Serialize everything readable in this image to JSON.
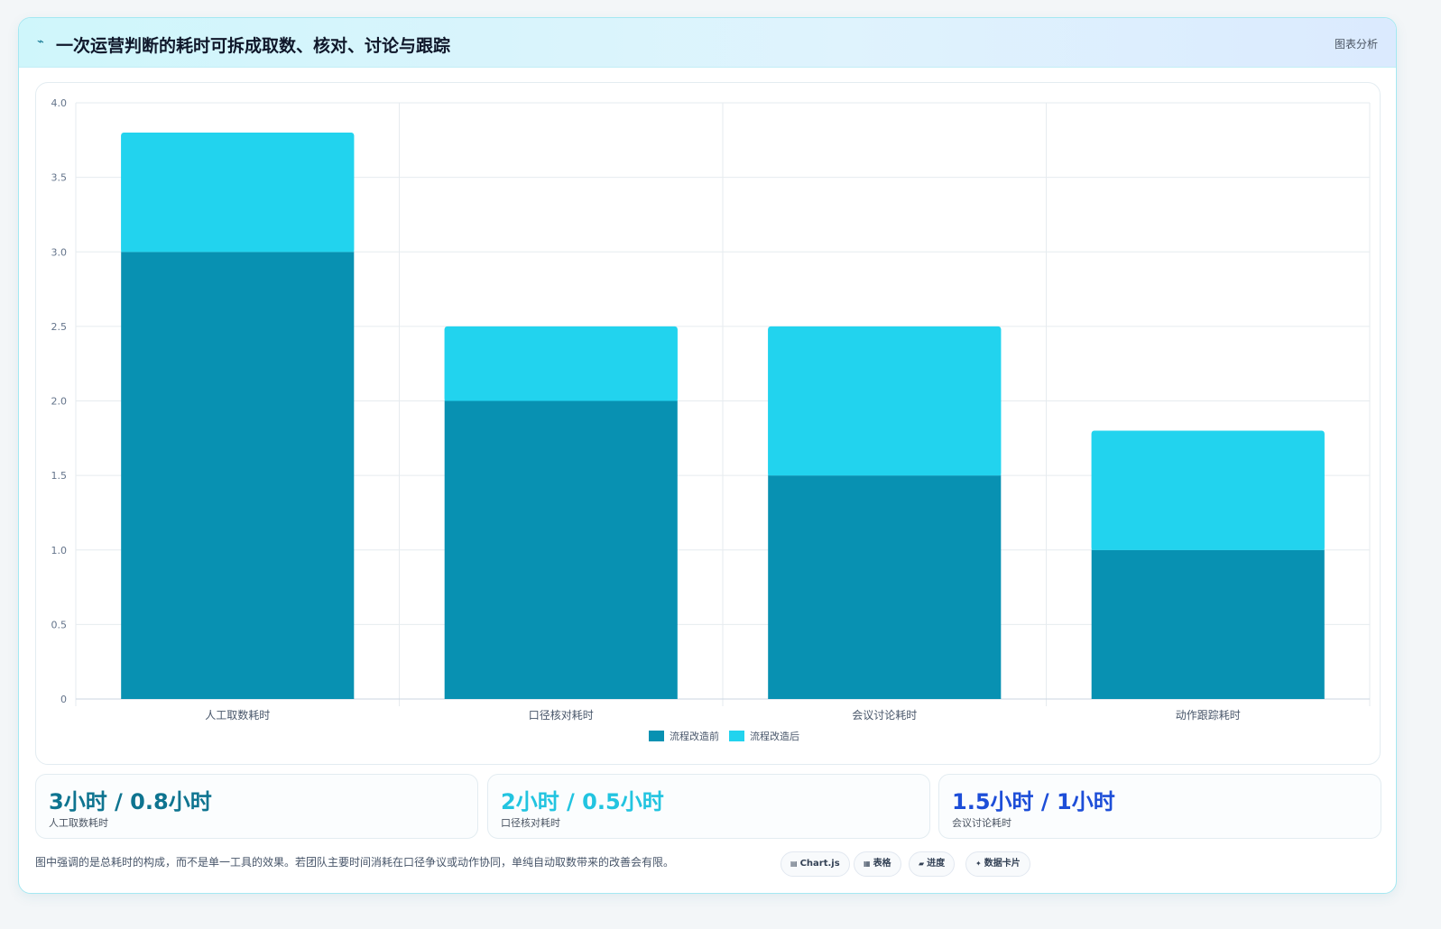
{
  "header": {
    "icon": "bolt-icon",
    "title": "一次运营判断的耗时可拆成取数、核对、讨论与跟踪",
    "tag": "图表分析"
  },
  "chart_data": {
    "type": "bar",
    "stacked": true,
    "categories": [
      "人工取数耗时",
      "口径核对耗时",
      "会议讨论耗时",
      "动作跟踪耗时"
    ],
    "series": [
      {
        "name": "流程改造前",
        "values": [
          3.0,
          2.0,
          1.5,
          1.0
        ],
        "color": "#0891b2"
      },
      {
        "name": "流程改造后",
        "values": [
          0.8,
          0.5,
          1.0,
          0.8
        ],
        "color": "#22d3ee"
      }
    ],
    "ylim": [
      0,
      4.0
    ],
    "yticks": [
      "0",
      "0.5",
      "1.0",
      "1.5",
      "2.0",
      "2.5",
      "3.0",
      "3.5",
      "4.0"
    ],
    "grid": true,
    "legend_position": "bottom"
  },
  "stats": [
    {
      "value": "3小时 / 0.8小时",
      "label": "人工取数耗时",
      "color": "#0e7490"
    },
    {
      "value": "2小时 / 0.5小时",
      "label": "口径核对耗时",
      "color": "#22c4e0"
    },
    {
      "value": "1.5小时 / 1小时",
      "label": "会议讨论耗时",
      "color": "#1d4ed8"
    }
  ],
  "footnote": "图中强调的是总耗时的构成，而不是单一工具的效果。若团队主要时间消耗在口径争议或动作协同，单纯自动取数带来的改善会有限。",
  "chips": [
    {
      "icon": "chart-icon",
      "glyph": "▤",
      "label": "Chart.js"
    },
    {
      "icon": "table-icon",
      "glyph": "▦",
      "label": "表格"
    },
    {
      "icon": "progress-icon",
      "glyph": "▰",
      "label": "进度"
    },
    {
      "icon": "sparkle-icon",
      "glyph": "✦",
      "label": "数据卡片"
    }
  ]
}
